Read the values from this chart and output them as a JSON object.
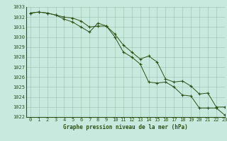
{
  "line1_x": [
    0,
    1,
    2,
    3,
    4,
    5,
    6,
    7,
    8,
    9,
    10,
    11,
    12,
    13,
    14,
    15,
    16,
    17,
    18,
    19,
    20,
    21,
    22,
    23
  ],
  "line1_y": [
    1032.4,
    1032.5,
    1032.4,
    1032.2,
    1032.0,
    1031.9,
    1031.6,
    1031.0,
    1031.1,
    1031.1,
    1030.3,
    1029.2,
    1028.5,
    1027.8,
    1028.1,
    1027.5,
    1025.8,
    1025.5,
    1025.6,
    1025.1,
    1024.3,
    1024.4,
    1023.0,
    1023.0
  ],
  "line2_x": [
    0,
    1,
    2,
    3,
    4,
    5,
    6,
    7,
    8,
    9,
    10,
    11,
    12,
    13,
    14,
    15,
    16,
    17,
    18,
    19,
    20,
    21,
    22,
    23
  ],
  "line2_y": [
    1032.4,
    1032.5,
    1032.4,
    1032.2,
    1031.8,
    1031.5,
    1031.0,
    1030.5,
    1031.4,
    1031.1,
    1030.0,
    1028.5,
    1028.0,
    1027.3,
    1025.5,
    1025.4,
    1025.5,
    1025.0,
    1024.2,
    1024.1,
    1022.9,
    1022.9,
    1022.9,
    1022.2
  ],
  "line_color": "#2d5016",
  "bg_color": "#c8eade",
  "grid_color": "#9abfab",
  "xlabel": "Graphe pression niveau de la mer (hPa)",
  "ylim": [
    1022,
    1033
  ],
  "xlim": [
    -0.5,
    23
  ],
  "yticks": [
    1022,
    1023,
    1024,
    1025,
    1026,
    1027,
    1028,
    1029,
    1030,
    1031,
    1032,
    1033
  ],
  "xticks": [
    0,
    1,
    2,
    3,
    4,
    5,
    6,
    7,
    8,
    9,
    10,
    11,
    12,
    13,
    14,
    15,
    16,
    17,
    18,
    19,
    20,
    21,
    22,
    23
  ],
  "tick_fontsize": 5.0,
  "xlabel_fontsize": 5.5
}
